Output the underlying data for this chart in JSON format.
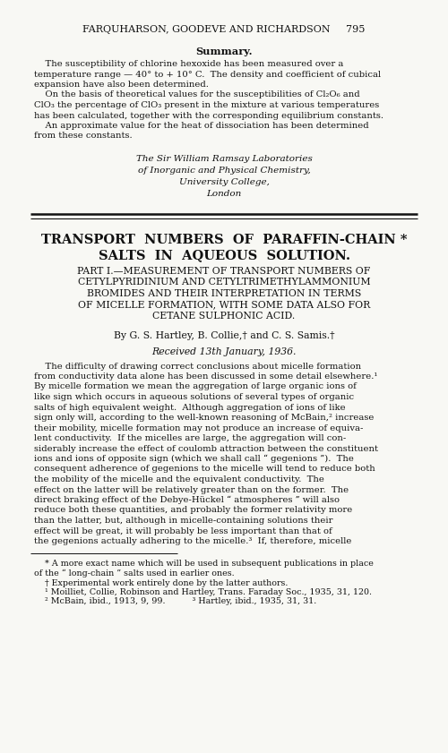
{
  "bg_color": "#f8f8f4",
  "text_color": "#1a1a1a",
  "header_line": "FARQUHARSON, GOODEVE AND RICHARDSON     795",
  "summary_title": "Summary.",
  "summary_para1_indent": "    The susceptibility of chlorine hexoxide has been measured over a",
  "summary_para1_rest": [
    "temperature range — 40° to + 10° C.  The density and coefficient of cubical",
    "expansion have also been determined."
  ],
  "summary_para2_indent": "    On the basis of theoretical values for the susceptibilities of Cl₂O₆ and",
  "summary_para2_rest": [
    "ClO₃ the percentage of ClO₃ present in the mixture at various temperatures",
    "has been calculated, together with the corresponding equilibrium constants."
  ],
  "summary_para3_indent": "    An approximate value for the heat of dissociation has been determined",
  "summary_para3_rest": [
    "from these constants."
  ],
  "italic_block": [
    "The Sir William Ramsay Laboratories",
    "of Inorganic and Physical Chemistry,",
    "University College,",
    "London"
  ],
  "main_title_line1": "TRANSPORT  NUMBERS  OF  PARAFFIN-CHAIN *",
  "main_title_line2": "SALTS  IN  AQUEOUS  SOLUTION.",
  "part_lines": [
    "PART I.—MEASUREMENT OF TRANSPORT NUMBERS OF",
    "CETYLPYRIDINIUM AND CETYLTRIMETHYLAMMONIUM",
    "BROMIDES AND THEIR INTERPRETATION IN TERMS",
    "OF MICELLE FORMATION, WITH SOME DATA ALSO FOR",
    "CETANE SULPHONIC ACID."
  ],
  "by_line": "By G. S. Hartley, B. Collie,† and C. S. Samis.†",
  "received_line": "Received 13th January, 1936.",
  "body_lines": [
    "    The difficulty of drawing correct conclusions about micelle formation",
    "from conductivity data alone has been discussed in some detail elsewhere.¹",
    "By micelle formation we mean the aggregation of large organic ions of",
    "like sign which occurs in aqueous solutions of several types of organic",
    "salts of high equivalent weight.  Although aggregation of ions of like",
    "sign only will, according to the well-known reasoning of McBain,² increase",
    "their mobility, micelle formation may not produce an increase of equiva-",
    "lent conductivity.  If the micelles are large, the aggregation will con-",
    "siderably increase the effect of coulomb attraction between the constituent",
    "ions and ions of opposite sign (which we shall call “ gegenions ”).  The",
    "consequent adherence of gegenions to the micelle will tend to reduce both",
    "the mobility of the micelle and the equivalent conductivity.  The",
    "effect on the latter will be relatively greater than on the former.  The",
    "direct braking effect of the Debye-Hückel “ atmospheres ” will also",
    "reduce both these quantities, and probably the former relativity more",
    "than the latter, but, although in micelle-containing solutions their",
    "effect will be great, it will probably be less important than that of",
    "the gegenions actually adhering to the micelle.³  If, therefore, micelle"
  ],
  "footnote_lines": [
    "    * A more exact name which will be used in subsequent publications in place",
    "of the “ long-chain ” salts used in earlier ones.",
    "    † Experimental work entirely done by the latter authors.",
    "    ¹ Moilliet, Collie, Robinson and Hartley, Trans. Faraday Soc., 1935, 31, 120.",
    "    ² McBain, ibid., 1913, 9, 99.          ³ Hartley, ibid., 1935, 31, 31."
  ]
}
